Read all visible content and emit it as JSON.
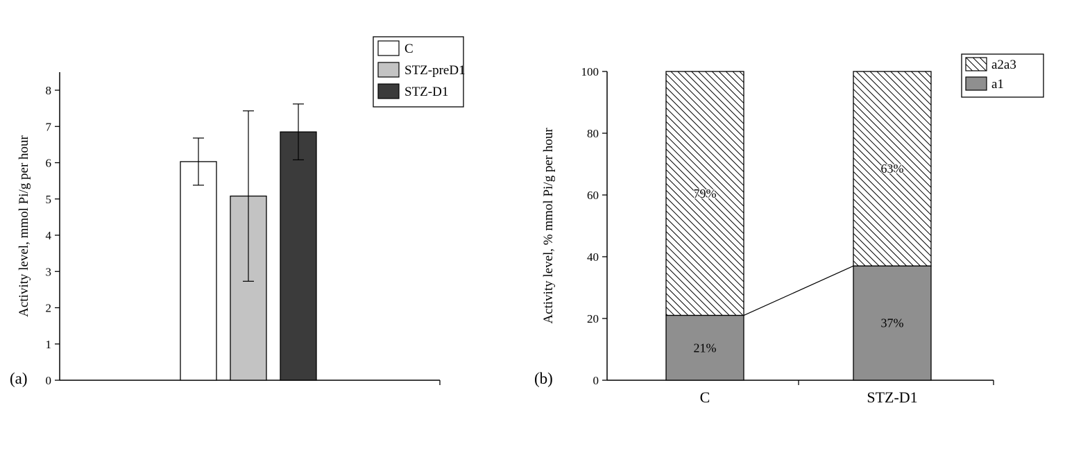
{
  "figure": {
    "background": "#ffffff",
    "panel_tags": [
      "(a)",
      "(b)"
    ]
  },
  "chart_data": [
    {
      "id": "panel-a",
      "type": "bar",
      "tag": "(a)",
      "title": "",
      "xlabel": "",
      "ylabel": "Activity level, mmol Pi/g per hour",
      "ylim": [
        0,
        8
      ],
      "yticks": [
        0,
        1,
        2,
        3,
        4,
        5,
        6,
        7,
        8
      ],
      "grid": false,
      "legend_position": "top-right",
      "categories": [
        "C",
        "STZ-preD1",
        "STZ-D1"
      ],
      "values": [
        6.03,
        5.08,
        6.85
      ],
      "error_bars": [
        0.65,
        2.35,
        0.77
      ],
      "bar_fills": [
        "#ffffff",
        "#c3c3c3",
        "#3b3b3b"
      ],
      "bar_stroke": "#000000",
      "legend": [
        {
          "label": "C",
          "fill": "#ffffff"
        },
        {
          "label": "STZ-preD1",
          "fill": "#c3c3c3"
        },
        {
          "label": "STZ-D1",
          "fill": "#3b3b3b"
        }
      ]
    },
    {
      "id": "panel-b",
      "type": "stacked-bar",
      "tag": "(b)",
      "title": "",
      "xlabel": "",
      "ylabel": "Activity level, % mmol Pi/g per hour",
      "ylim": [
        0,
        100
      ],
      "yticks": [
        0,
        20,
        40,
        60,
        80,
        100
      ],
      "grid": false,
      "legend_position": "top-right",
      "categories": [
        "C",
        "STZ-D1"
      ],
      "series": [
        {
          "name": "a1",
          "values": [
            21,
            37
          ],
          "labels": [
            "21%",
            "37%"
          ],
          "fill": "#8f8f8f",
          "pattern": "solid"
        },
        {
          "name": "a2a3",
          "values": [
            79,
            63
          ],
          "labels": [
            "79%",
            "63%"
          ],
          "fill": "#ffffff",
          "pattern": "diagonal-hatch"
        }
      ],
      "legend": [
        {
          "label": "a2a3",
          "pattern": "diagonal-hatch",
          "fill": "#ffffff"
        },
        {
          "label": "a1",
          "pattern": "solid",
          "fill": "#8f8f8f"
        }
      ],
      "connector_line": {
        "from_category": "C",
        "to_category": "STZ-D1",
        "at_series": "a1"
      },
      "bar_stroke": "#000000"
    }
  ]
}
